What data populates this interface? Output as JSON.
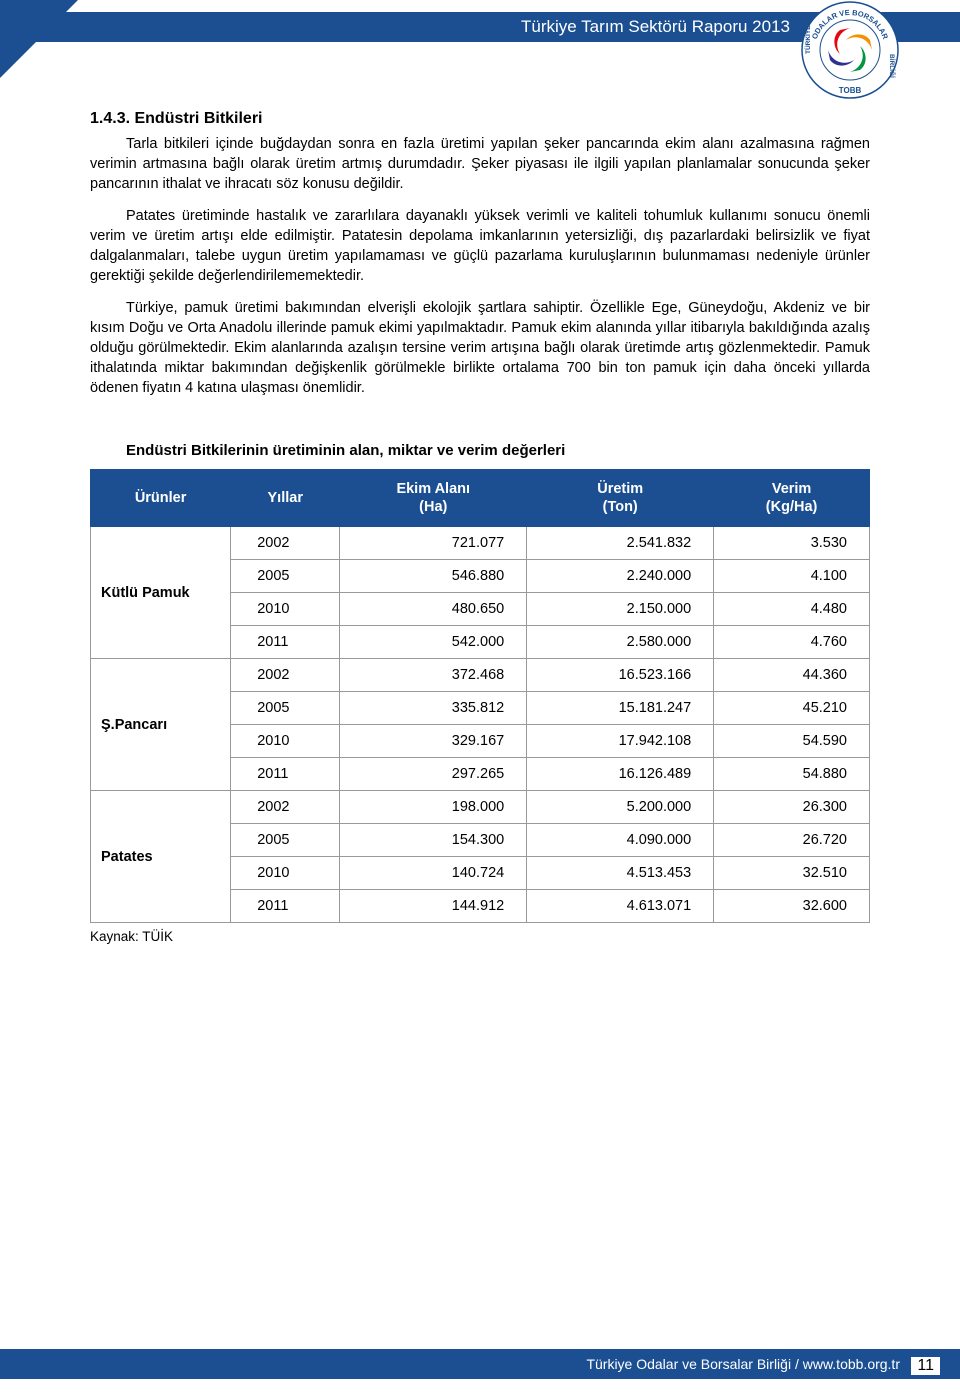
{
  "header": {
    "title": "Türkiye Tarım Sektörü Raporu 2013",
    "brand_color": "#1b4f91",
    "logo": {
      "outer_text_top": "ODALAR VE BORSALAR",
      "outer_text_side": "TÜRKİYE    BİRLİĞİ",
      "bottom_label": "TOBB",
      "ring_color": "#ffffff",
      "text_color": "#1b4f91",
      "swirl_colors": [
        "#e30613",
        "#f39200",
        "#009640",
        "#2e3192"
      ]
    }
  },
  "section": {
    "number": "1.4.3. Endüstri Bitkileri",
    "paragraphs": [
      "Tarla bitkileri içinde buğdaydan sonra en fazla üretimi yapılan şeker pancarında ekim alanı azalmasına rağmen verimin artmasına bağlı olarak üretim artmış durumdadır. Şeker piyasası ile ilgili yapılan planlamalar sonucunda şeker pancarının ithalat ve ihracatı söz konusu değildir.",
      "Patates üretiminde hastalık ve zararlılara dayanaklı yüksek verimli ve kaliteli tohumluk kullanımı sonucu önemli verim ve üretim artışı elde edilmiştir. Patatesin depolama imkanlarının yetersizliği, dış pazarlardaki belirsizlik ve fiyat dalgalanmaları, talebe uygun üretim yapılamaması ve güçlü pazarlama kuruluşlarının bulunmaması nedeniyle ürünler gerektiği şekilde değerlendirilememektedir.",
      "Türkiye, pamuk üretimi bakımından elverişli ekolojik şartlara sahiptir. Özellikle Ege, Güneydoğu, Akdeniz ve bir kısım Doğu ve Orta Anadolu illerinde pamuk ekimi yapılmaktadır. Pamuk ekim alanında yıllar itibarıyla bakıldığında azalış olduğu görülmektedir. Ekim alanlarında azalışın tersine verim artışına bağlı olarak üretimde artış gözlenmektedir. Pamuk ithalatında miktar bakımından değişkenlik görülmekle birlikte ortalama 700 bin ton pamuk için daha önceki yıllarda ödenen fiyatın 4 katına ulaşması önemlidir."
    ]
  },
  "table": {
    "title": "Endüstri Bitkilerinin üretiminin alan, miktar ve verim değerleri",
    "columns": [
      "Ürünler",
      "Yıllar",
      "Ekim Alanı\n(Ha)",
      "Üretim\n(Ton)",
      "Verim\n(Kg/Ha)"
    ],
    "col_widths_pct": [
      18,
      14,
      24,
      24,
      20
    ],
    "header_bg": "#1b4f91",
    "header_fg": "#ffffff",
    "border_color": "#999999",
    "groups": [
      {
        "product": "Kütlü Pamuk",
        "rows": [
          {
            "year": "2002",
            "area": "721.077",
            "production": "2.541.832",
            "yield": "3.530"
          },
          {
            "year": "2005",
            "area": "546.880",
            "production": "2.240.000",
            "yield": "4.100"
          },
          {
            "year": "2010",
            "area": "480.650",
            "production": "2.150.000",
            "yield": "4.480"
          },
          {
            "year": "2011",
            "area": "542.000",
            "production": "2.580.000",
            "yield": "4.760"
          }
        ]
      },
      {
        "product": "Ş.Pancarı",
        "rows": [
          {
            "year": "2002",
            "area": "372.468",
            "production": "16.523.166",
            "yield": "44.360"
          },
          {
            "year": "2005",
            "area": "335.812",
            "production": "15.181.247",
            "yield": "45.210"
          },
          {
            "year": "2010",
            "area": "329.167",
            "production": "17.942.108",
            "yield": "54.590"
          },
          {
            "year": "2011",
            "area": "297.265",
            "production": "16.126.489",
            "yield": "54.880"
          }
        ]
      },
      {
        "product": "Patates",
        "rows": [
          {
            "year": "2002",
            "area": "198.000",
            "production": "5.200.000",
            "yield": "26.300"
          },
          {
            "year": "2005",
            "area": "154.300",
            "production": "4.090.000",
            "yield": "26.720"
          },
          {
            "year": "2010",
            "area": "140.724",
            "production": "4.513.453",
            "yield": "32.510"
          },
          {
            "year": "2011",
            "area": "144.912",
            "production": "4.613.071",
            "yield": "32.600"
          }
        ]
      }
    ],
    "source": "Kaynak: TÜİK"
  },
  "footer": {
    "text": "Türkiye Odalar ve Borsalar Birliği / www.tobb.org.tr",
    "page_number": "11"
  }
}
